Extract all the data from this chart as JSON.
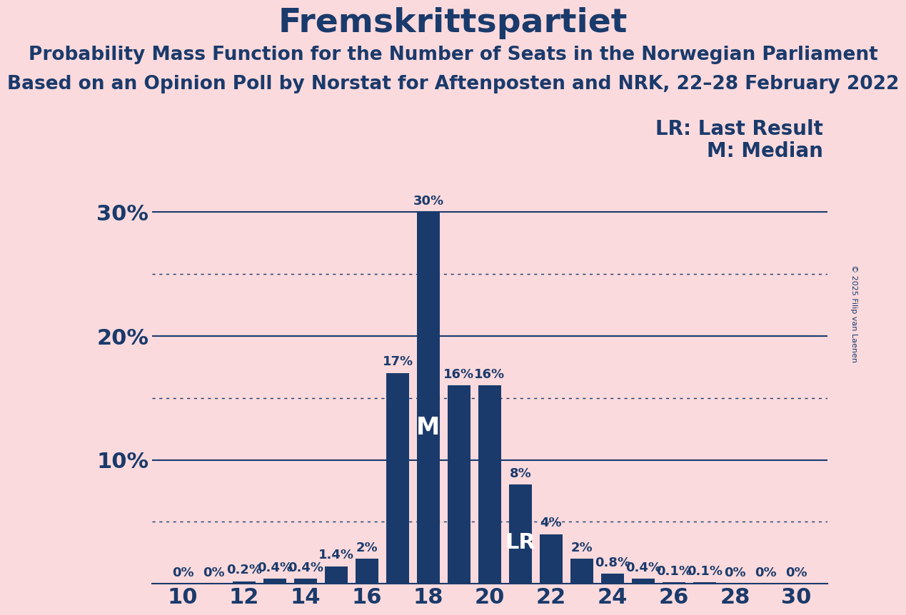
{
  "title": "Fremskrittspartiet",
  "subtitle1": "Probability Mass Function for the Number of Seats in the Norwegian Parliament",
  "subtitle2": "Based on an Opinion Poll by Norstat for Aftenposten and NRK, 22–28 February 2022",
  "copyright": "© 2025 Filip van Laenen",
  "legend_lr": "LR: Last Result",
  "legend_m": "M: Median",
  "background_color": "#FADADD",
  "bar_color": "#1a3a6b",
  "title_color": "#1a3a6b",
  "seats": [
    10,
    11,
    12,
    13,
    14,
    15,
    16,
    17,
    18,
    19,
    20,
    21,
    22,
    23,
    24,
    25,
    26,
    27,
    28,
    29,
    30
  ],
  "probabilities": [
    0.0,
    0.0,
    0.2,
    0.4,
    0.4,
    1.4,
    2.0,
    17.0,
    30.0,
    16.0,
    16.0,
    8.0,
    4.0,
    2.0,
    0.8,
    0.4,
    0.1,
    0.1,
    0.0,
    0.0,
    0.0
  ],
  "labels": [
    "0%",
    "0%",
    "0.2%",
    "0.4%",
    "0.4%",
    "1.4%",
    "2%",
    "17%",
    "30%",
    "16%",
    "16%",
    "8%",
    "4%",
    "2%",
    "0.8%",
    "0.4%",
    "0.1%",
    "0.1%",
    "0%",
    "0%",
    "0%"
  ],
  "median_seat": 18,
  "last_result_seat": 21,
  "xlim": [
    9,
    31
  ],
  "ylim": [
    0,
    33
  ],
  "yticks": [
    10,
    20,
    30
  ],
  "ytick_labels": [
    "10%",
    "20%",
    "30%"
  ],
  "xticks": [
    10,
    12,
    14,
    16,
    18,
    20,
    22,
    24,
    26,
    28,
    30
  ],
  "solid_lines": [
    10,
    20,
    30
  ],
  "dotted_lines": [
    5,
    15,
    25
  ],
  "title_fontsize": 34,
  "subtitle_fontsize": 19,
  "tick_fontsize": 22,
  "label_fontsize": 13,
  "legend_fontsize": 20,
  "bar_width": 0.75
}
